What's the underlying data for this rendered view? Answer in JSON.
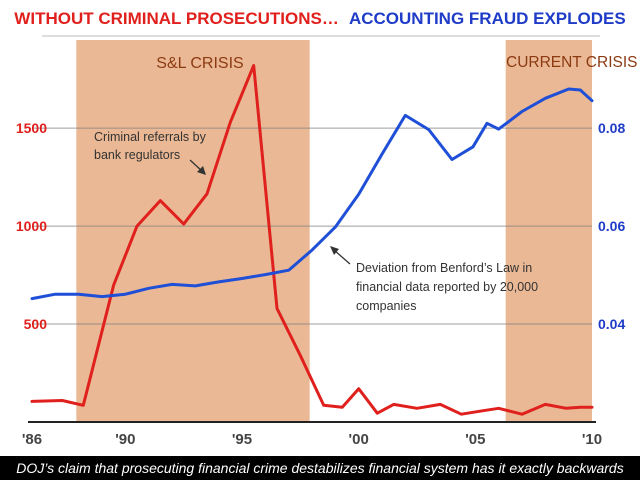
{
  "chart_data": {
    "type": "line",
    "title": {
      "part1": "WITHOUT CRIMINAL PROSECUTIONS…",
      "part2": "ACCOUNTING FRAUD EXPLODES",
      "color1": "#e0201c",
      "color2": "#1f3cc8"
    },
    "caption": "DOJ’s claim that prosecuting financial crime destabilizes financial system has it exactly backwards",
    "x_range": [
      1986,
      2010
    ],
    "x_ticks": [
      {
        "value": 1986,
        "label": "'86"
      },
      {
        "value": 1990,
        "label": "'90"
      },
      {
        "value": 1995,
        "label": "'95"
      },
      {
        "value": 2000,
        "label": "'00"
      },
      {
        "value": 2005,
        "label": "'05"
      },
      {
        "value": 2010,
        "label": "'10"
      }
    ],
    "y_left": {
      "range": [
        0,
        1950
      ],
      "ticks": [
        {
          "value": 500,
          "label": "500"
        },
        {
          "value": 1000,
          "label": "1000"
        },
        {
          "value": 1500,
          "label": "1500"
        }
      ],
      "color": "#e0201c"
    },
    "y_right": {
      "range": [
        0.02,
        0.098
      ],
      "ticks": [
        {
          "value": 0.04,
          "label": "0.04"
        },
        {
          "value": 0.06,
          "label": "0.06"
        },
        {
          "value": 0.08,
          "label": "0.08"
        }
      ],
      "color": "#1f3cc8"
    },
    "grid": true,
    "shaded_periods": [
      {
        "start": 1987.9,
        "end": 1997.9,
        "label": "S&L CRISIS"
      },
      {
        "start": 2006.3,
        "end": 2010.0,
        "label": "CURRENT CRISIS"
      }
    ],
    "shade_color": "#eab894",
    "series": [
      {
        "axis": "left",
        "color": "#e0201c",
        "x": [
          1986,
          1987.3,
          1988.2,
          1989.5,
          1990.5,
          1991.5,
          1992.5,
          1993.5,
          1994.5,
          1995.5,
          1996.5,
          1997.5,
          1998.5,
          1999.3,
          2000,
          2000.8,
          2001.5,
          2002.5,
          2003.5,
          2004.4,
          2005.2,
          2006,
          2007,
          2008,
          2008.9,
          2009.5,
          2010
        ],
        "values": [
          105,
          110,
          85,
          700,
          1000,
          1130,
          1010,
          1165,
          1530,
          1820,
          580,
          340,
          85,
          75,
          170,
          45,
          90,
          70,
          90,
          40,
          55,
          70,
          40,
          90,
          70,
          75,
          75
        ]
      },
      {
        "axis": "right",
        "color": "#1f4fd6",
        "x": [
          1986,
          1987,
          1988,
          1989,
          1990,
          1991,
          1992,
          1993,
          1994,
          1995,
          1996,
          1997,
          1998,
          1999,
          2000,
          2001,
          2002,
          2003,
          2004,
          2004.9,
          2005.5,
          2006,
          2007,
          2008,
          2009,
          2009.5,
          2010
        ],
        "values": [
          0.0452,
          0.0461,
          0.0461,
          0.0456,
          0.0461,
          0.0473,
          0.0481,
          0.0478,
          0.0486,
          0.0493,
          0.0501,
          0.051,
          0.0551,
          0.0598,
          0.0665,
          0.0747,
          0.0826,
          0.0797,
          0.0736,
          0.0762,
          0.081,
          0.0798,
          0.0834,
          0.0861,
          0.088,
          0.0878,
          0.0856
        ]
      }
    ],
    "annotations": {
      "referrals": [
        "Criminal referrals by",
        "bank regulators"
      ],
      "benford": [
        "Deviation from Benford’s Law in",
        "financial data reported by 20,000",
        "companies"
      ]
    }
  }
}
